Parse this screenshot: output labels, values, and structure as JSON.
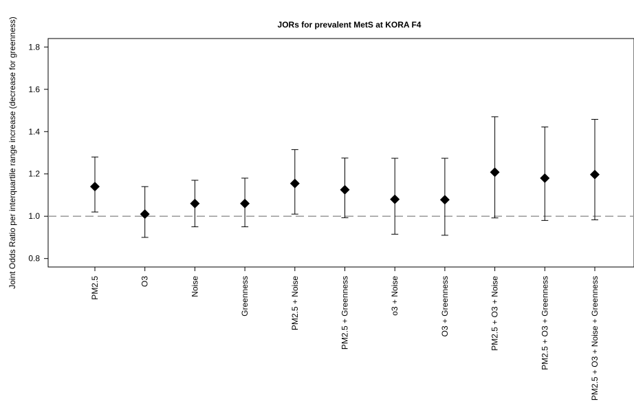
{
  "chart_data": {
    "type": "scatter",
    "title": "JORs for prevalent MetS at KORA F4",
    "xlabel": "",
    "ylabel": "Joint Odds Ratio per interquartile range increase (decrease for greenness)",
    "ylim": [
      0.76,
      1.84
    ],
    "yticks": [
      0.8,
      1.0,
      1.2,
      1.4,
      1.6,
      1.8
    ],
    "reference_line": 1.0,
    "categories": [
      "PM2.5",
      "O3",
      "Noise",
      "Greenness",
      "PM2.5 + Noise",
      "PM2.5 + Greenness",
      "o3 + Noise",
      "O3 + Greenness",
      "PM2.5 + O3 + Noise",
      "PM2.5 + O3 + Greenness",
      "PM2.5 + O3 + Noise + Greenness"
    ],
    "series": [
      {
        "estimate": [
          1.14,
          1.01,
          1.06,
          1.06,
          1.155,
          1.125,
          1.08,
          1.078,
          1.208,
          1.18,
          1.197
        ],
        "lower": [
          1.02,
          0.9,
          0.95,
          0.95,
          1.01,
          0.993,
          0.915,
          0.91,
          0.992,
          0.98,
          0.983
        ],
        "upper": [
          1.28,
          1.14,
          1.17,
          1.18,
          1.315,
          1.275,
          1.274,
          1.274,
          1.47,
          1.422,
          1.458
        ]
      }
    ],
    "grid": false,
    "colors": {
      "marker": "#000000",
      "errorbar": "#000000",
      "reference": "#999999"
    }
  }
}
